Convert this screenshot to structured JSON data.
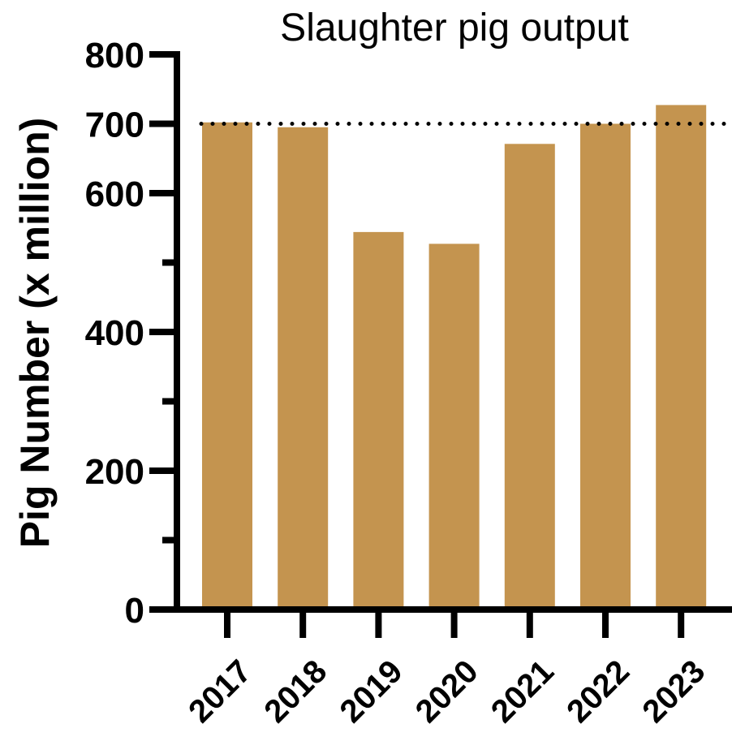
{
  "chart_data": {
    "type": "bar",
    "title": "Slaughter pig output",
    "ylabel": "Pig Number (x million)",
    "xlabel": "",
    "categories": [
      "2017",
      "2018",
      "2019",
      "2020",
      "2021",
      "2022",
      "2023"
    ],
    "values": [
      702,
      695,
      544,
      527,
      671,
      700,
      727
    ],
    "ylim": [
      0,
      800
    ],
    "yticks_major": [
      0,
      200,
      400,
      600,
      700,
      800
    ],
    "yticks_minor": [
      100,
      300,
      500
    ],
    "reference_line": {
      "value": 700,
      "style": "dotted"
    },
    "bar_color": "#C4944F",
    "grid": false,
    "legend": "none"
  }
}
